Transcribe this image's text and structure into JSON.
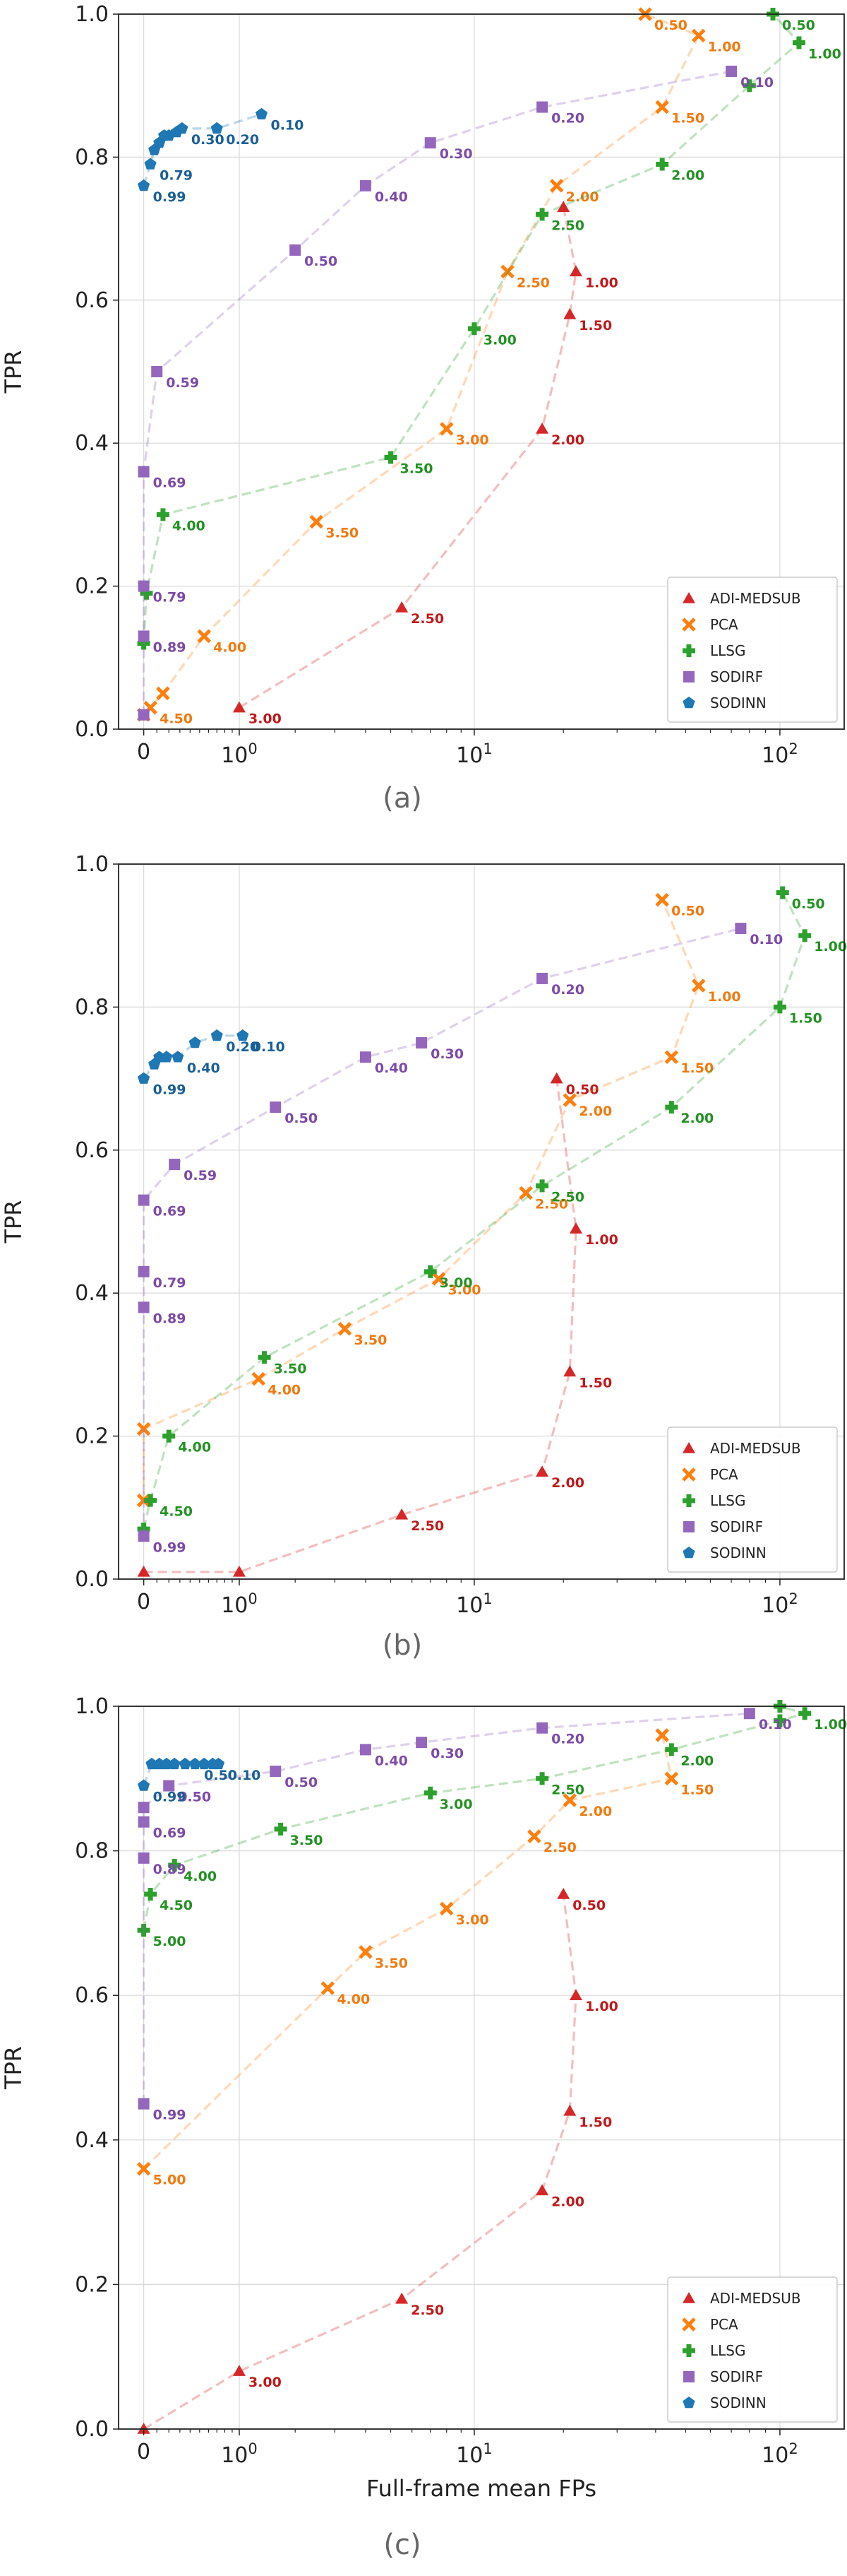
{
  "chart_data": [
    {
      "type": "line",
      "panel_label": "(a)",
      "xlabel": "",
      "ylabel": "TPR",
      "xscale": "symlog",
      "xlim": [
        -0.2,
        160
      ],
      "ylim": [
        0,
        1.0
      ],
      "xticks": [
        {
          "value": 0,
          "label": "0"
        },
        {
          "value": 1,
          "label": "10^0"
        },
        {
          "value": 10,
          "label": "10^1"
        },
        {
          "value": 100,
          "label": "10^2"
        }
      ],
      "yticks": [
        "0.0",
        "0.2",
        "0.4",
        "0.6",
        "0.8",
        "1.0"
      ],
      "legend": [
        "ADI-MEDSUB",
        "PCA",
        "LLSG",
        "SODIRF",
        "SODINN"
      ],
      "series": [
        {
          "name": "ADI-MEDSUB",
          "points": [
            [
              1.0,
              0.03,
              "3.00"
            ],
            [
              5.5,
              0.17,
              "2.50"
            ],
            [
              17,
              0.42,
              "2.00"
            ],
            [
              21,
              0.58,
              "1.50"
            ],
            [
              22,
              0.64,
              "1.00"
            ],
            [
              20,
              0.73,
              ""
            ]
          ]
        },
        {
          "name": "PCA",
          "points": [
            [
              0,
              0.02,
              ""
            ],
            [
              0.05,
              0.03,
              "4.50"
            ],
            [
              0.15,
              0.05,
              ""
            ],
            [
              0.55,
              0.13,
              "4.00"
            ],
            [
              2.5,
              0.29,
              "3.50"
            ],
            [
              8,
              0.42,
              "3.00"
            ],
            [
              13,
              0.64,
              "2.50"
            ],
            [
              19,
              0.76,
              "2.00"
            ],
            [
              42,
              0.87,
              "1.50"
            ],
            [
              55,
              0.97,
              "1.00"
            ],
            [
              37,
              1.0,
              "0.50"
            ]
          ]
        },
        {
          "name": "LLSG",
          "points": [
            [
              0,
              0.12,
              ""
            ],
            [
              0.02,
              0.19,
              ""
            ],
            [
              0.15,
              0.3,
              "4.00"
            ],
            [
              5.0,
              0.38,
              "3.50"
            ],
            [
              10,
              0.56,
              "3.00"
            ],
            [
              17,
              0.72,
              "2.50"
            ],
            [
              42,
              0.79,
              "2.00"
            ],
            [
              80,
              0.9,
              ""
            ],
            [
              115,
              0.96,
              "1.00"
            ],
            [
              95,
              1.0,
              "0.50"
            ]
          ]
        },
        {
          "name": "SODIRF",
          "points": [
            [
              0,
              0.02,
              ""
            ],
            [
              0,
              0.13,
              "0.89"
            ],
            [
              0,
              0.2,
              "0.79"
            ],
            [
              0,
              0.36,
              "0.69"
            ],
            [
              0.1,
              0.5,
              "0.59"
            ],
            [
              2,
              0.67,
              "0.50"
            ],
            [
              4,
              0.76,
              "0.40"
            ],
            [
              7,
              0.82,
              "0.30"
            ],
            [
              17,
              0.87,
              "0.20"
            ],
            [
              70,
              0.92,
              "0.10"
            ]
          ]
        },
        {
          "name": "SODINN",
          "points": [
            [
              0,
              0.76,
              "0.99"
            ],
            [
              0.05,
              0.79,
              "0.79"
            ],
            [
              0.08,
              0.81,
              ""
            ],
            [
              0.12,
              0.82,
              ""
            ],
            [
              0.16,
              0.83,
              ""
            ],
            [
              0.2,
              0.83,
              ""
            ],
            [
              0.27,
              0.835,
              ""
            ],
            [
              0.32,
              0.84,
              "0.30"
            ],
            [
              0.7,
              0.84,
              "0.20"
            ],
            [
              1.35,
              0.86,
              "0.10"
            ]
          ]
        }
      ]
    },
    {
      "type": "line",
      "panel_label": "(b)",
      "xlabel": "",
      "ylabel": "TPR",
      "xscale": "symlog",
      "xlim": [
        -0.2,
        160
      ],
      "ylim": [
        0,
        1.0
      ],
      "xticks": [
        {
          "value": 0,
          "label": "0"
        },
        {
          "value": 1,
          "label": "10^0"
        },
        {
          "value": 10,
          "label": "10^1"
        },
        {
          "value": 100,
          "label": "10^2"
        }
      ],
      "yticks": [
        "0.0",
        "0.2",
        "0.4",
        "0.6",
        "0.8",
        "1.0"
      ],
      "legend": [
        "ADI-MEDSUB",
        "PCA",
        "LLSG",
        "SODIRF",
        "SODINN"
      ],
      "series": [
        {
          "name": "ADI-MEDSUB",
          "points": [
            [
              0,
              0.01,
              ""
            ],
            [
              1.0,
              0.01,
              ""
            ],
            [
              5.5,
              0.09,
              "2.50"
            ],
            [
              17,
              0.15,
              "2.00"
            ],
            [
              21,
              0.29,
              "1.50"
            ],
            [
              22,
              0.49,
              "1.00"
            ],
            [
              19,
              0.7,
              "0.50"
            ]
          ]
        },
        {
          "name": "PCA",
          "points": [
            [
              0,
              0.11,
              ""
            ],
            [
              0,
              0.21,
              ""
            ],
            [
              1.3,
              0.28,
              "4.00"
            ],
            [
              3.3,
              0.35,
              "3.50"
            ],
            [
              7.5,
              0.42,
              "3.00"
            ],
            [
              15,
              0.54,
              "2.50"
            ],
            [
              21,
              0.67,
              "2.00"
            ],
            [
              45,
              0.73,
              "1.50"
            ],
            [
              55,
              0.83,
              "1.00"
            ],
            [
              42,
              0.95,
              "0.50"
            ]
          ]
        },
        {
          "name": "LLSG",
          "points": [
            [
              0,
              0.07,
              ""
            ],
            [
              0.05,
              0.11,
              "4.50"
            ],
            [
              0.2,
              0.2,
              "4.00"
            ],
            [
              1.4,
              0.31,
              "3.50"
            ],
            [
              7,
              0.43,
              "3.00"
            ],
            [
              17,
              0.55,
              "2.50"
            ],
            [
              45,
              0.66,
              "2.00"
            ],
            [
              100,
              0.8,
              "1.50"
            ],
            [
              120,
              0.9,
              "1.00"
            ],
            [
              102,
              0.96,
              "0.50"
            ]
          ]
        },
        {
          "name": "SODIRF",
          "points": [
            [
              0,
              0.06,
              "0.99"
            ],
            [
              0,
              0.38,
              "0.89"
            ],
            [
              0,
              0.43,
              "0.79"
            ],
            [
              0,
              0.53,
              "0.69"
            ],
            [
              0.25,
              0.58,
              "0.59"
            ],
            [
              1.6,
              0.66,
              "0.50"
            ],
            [
              4,
              0.73,
              "0.40"
            ],
            [
              6.5,
              0.75,
              "0.30"
            ],
            [
              17,
              0.84,
              "0.20"
            ],
            [
              75,
              0.91,
              "0.10"
            ]
          ]
        },
        {
          "name": "SODINN",
          "points": [
            [
              0,
              0.7,
              "0.99"
            ],
            [
              0.08,
              0.72,
              ""
            ],
            [
              0.12,
              0.73,
              ""
            ],
            [
              0.18,
              0.73,
              ""
            ],
            [
              0.28,
              0.73,
              "0.40"
            ],
            [
              0.45,
              0.75,
              ""
            ],
            [
              0.7,
              0.76,
              "0.20"
            ],
            [
              1.05,
              0.76,
              "0.10"
            ]
          ]
        }
      ]
    },
    {
      "type": "line",
      "panel_label": "(c)",
      "xlabel": "Full-frame mean FPs",
      "ylabel": "TPR",
      "xscale": "symlog",
      "xlim": [
        -0.2,
        160
      ],
      "ylim": [
        0,
        1.0
      ],
      "xticks": [
        {
          "value": 0,
          "label": "0"
        },
        {
          "value": 1,
          "label": "10^0"
        },
        {
          "value": 10,
          "label": "10^1"
        },
        {
          "value": 100,
          "label": "10^2"
        }
      ],
      "yticks": [
        "0.0",
        "0.2",
        "0.4",
        "0.6",
        "0.8",
        "1.0"
      ],
      "legend": [
        "ADI-MEDSUB",
        "PCA",
        "LLSG",
        "SODIRF",
        "SODINN"
      ],
      "series": [
        {
          "name": "ADI-MEDSUB",
          "points": [
            [
              0,
              0.0,
              ""
            ],
            [
              1.0,
              0.08,
              "3.00"
            ],
            [
              5.5,
              0.18,
              "2.50"
            ],
            [
              17,
              0.33,
              "2.00"
            ],
            [
              21,
              0.44,
              "1.50"
            ],
            [
              22,
              0.6,
              "1.00"
            ],
            [
              20,
              0.74,
              "0.50"
            ]
          ]
        },
        {
          "name": "PCA",
          "points": [
            [
              0,
              0.36,
              "5.00"
            ],
            [
              2.8,
              0.61,
              "4.00"
            ],
            [
              4,
              0.66,
              "3.50"
            ],
            [
              8,
              0.72,
              "3.00"
            ],
            [
              16,
              0.82,
              "2.50"
            ],
            [
              21,
              0.87,
              "2.00"
            ],
            [
              45,
              0.9,
              "1.50"
            ],
            [
              42,
              0.96,
              ""
            ]
          ]
        },
        {
          "name": "LLSG",
          "points": [
            [
              0,
              0.69,
              "5.00"
            ],
            [
              0.05,
              0.74,
              "4.50"
            ],
            [
              0.25,
              0.78,
              "4.00"
            ],
            [
              1.7,
              0.83,
              "3.50"
            ],
            [
              7,
              0.88,
              "3.00"
            ],
            [
              17,
              0.9,
              "2.50"
            ],
            [
              45,
              0.94,
              "2.00"
            ],
            [
              100,
              0.98,
              ""
            ],
            [
              120,
              0.99,
              "1.00"
            ],
            [
              100,
              1.0,
              ""
            ]
          ]
        },
        {
          "name": "SODIRF",
          "points": [
            [
              0,
              0.45,
              "0.99"
            ],
            [
              0,
              0.79,
              "0.89"
            ],
            [
              0,
              0.84,
              "0.69"
            ],
            [
              0,
              0.86,
              ""
            ],
            [
              0.2,
              0.89,
              "0.50"
            ],
            [
              1.6,
              0.91,
              "0.50"
            ],
            [
              4,
              0.94,
              "0.40"
            ],
            [
              6.5,
              0.95,
              "0.30"
            ],
            [
              17,
              0.97,
              "0.20"
            ],
            [
              80,
              0.99,
              "0.10"
            ]
          ]
        },
        {
          "name": "SODINN",
          "points": [
            [
              0,
              0.89,
              "0.99"
            ],
            [
              0.06,
              0.92,
              ""
            ],
            [
              0.12,
              0.92,
              ""
            ],
            [
              0.18,
              0.92,
              ""
            ],
            [
              0.25,
              0.92,
              ""
            ],
            [
              0.35,
              0.92,
              ""
            ],
            [
              0.45,
              0.92,
              "0.50"
            ],
            [
              0.55,
              0.92,
              ""
            ],
            [
              0.65,
              0.92,
              ""
            ],
            [
              0.72,
              0.92,
              "0.10"
            ]
          ]
        }
      ]
    }
  ],
  "styles": {
    "ADI-MEDSUB": {
      "color": "#d62728",
      "label_color": "#c0191c",
      "marker": "triangle"
    },
    "PCA": {
      "color": "#ff7f0e",
      "label_color": "#f07a10",
      "marker": "x"
    },
    "LLSG": {
      "color": "#2ca02c",
      "label_color": "#239123",
      "marker": "plus"
    },
    "SODIRF": {
      "color": "#9467bd",
      "label_color": "#7d4aa8",
      "marker": "square"
    },
    "SODINN": {
      "color": "#1f77b4",
      "label_color": "#1a5f94",
      "marker": "pentagon"
    }
  }
}
